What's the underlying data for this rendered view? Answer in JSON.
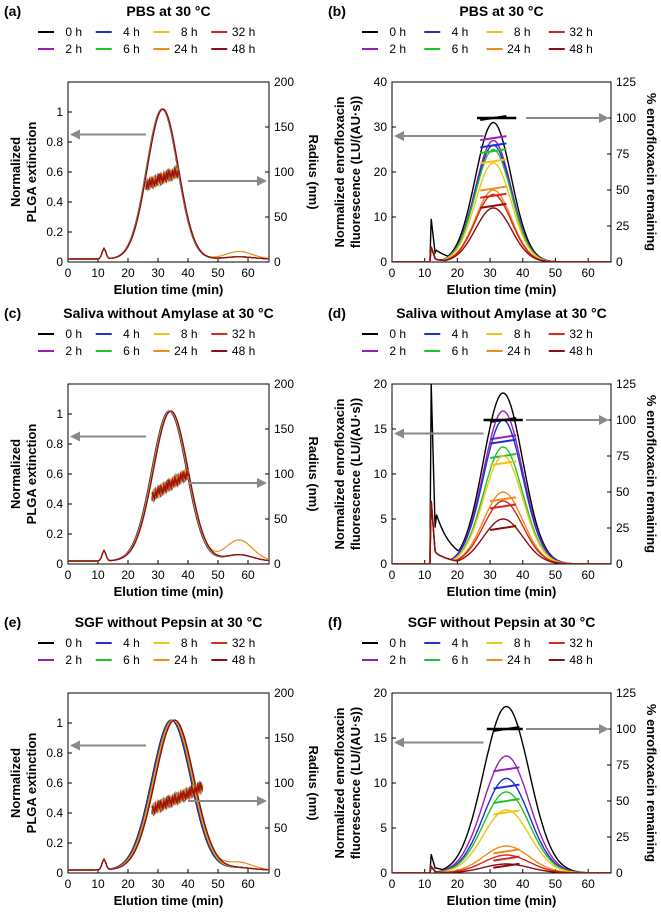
{
  "legend_entries": [
    {
      "label": "0 h",
      "color": "#000000"
    },
    {
      "label": "2 h",
      "color": "#9b1fb5"
    },
    {
      "label": "4 h",
      "color": "#1f2fd6"
    },
    {
      "label": "6 h",
      "color": "#22c22a"
    },
    {
      "label": "8 h",
      "color": "#f0c419"
    },
    {
      "label": "24 h",
      "color": "#f08a1a"
    },
    {
      "label": "32 h",
      "color": "#d42a1c"
    },
    {
      "label": "48 h",
      "color": "#8b0d0d"
    }
  ],
  "chart_data": [
    {
      "panel": "(a)",
      "title": "PBS at 30 °C",
      "type": "line",
      "xlabel": "Elution time (min)",
      "ylabel": [
        "Normalized",
        "PLGA extinction"
      ],
      "y2label": "Radius (nm)",
      "xlim": [
        0,
        67
      ],
      "xticks": [
        0,
        10,
        20,
        30,
        40,
        50,
        60
      ],
      "ylim": [
        0,
        1.2
      ],
      "yticks": [
        0,
        0.2,
        0.4,
        0.6,
        0.8,
        1
      ],
      "y2lim": [
        0,
        200
      ],
      "y2ticks": [
        0,
        50,
        100,
        150,
        200
      ],
      "peak": {
        "center": 31.5,
        "width": 5.2,
        "spread": 0.15,
        "tail": 0.05,
        "bump": 12
      },
      "radius": {
        "start": 26,
        "end": 37,
        "from": 85,
        "to": 100
      },
      "arrows": {
        "left_y": 0.85,
        "right_y": 90
      }
    },
    {
      "panel": "(b)",
      "title": "PBS at 30 °C",
      "type": "line",
      "xlabel": "Elution time (min)",
      "ylabel": [
        "Normalized enrofloxacin",
        "fluorescence (LU/(AU·s))"
      ],
      "y2label": "% enrofloxacin remaining",
      "xlim": [
        0,
        67
      ],
      "xticks": [
        0,
        10,
        20,
        30,
        40,
        50,
        60
      ],
      "ylim": [
        0,
        40
      ],
      "yticks": [
        0,
        10,
        20,
        30,
        40
      ],
      "y2lim": [
        0,
        125
      ],
      "y2ticks": [
        0,
        25,
        50,
        75,
        100,
        125
      ],
      "peak": {
        "center": 31,
        "width": 5.5,
        "heights": [
          31,
          27,
          26,
          25,
          22,
          16,
          15,
          12
        ],
        "spike": 9.5
      },
      "remaining": [
        100,
        86,
        81,
        77,
        70,
        51,
        46,
        39
      ],
      "bar": {
        "from": 26,
        "to": 38,
        "level": 100
      },
      "arrows": {
        "left_y": 28,
        "right_y": 100
      }
    },
    {
      "panel": "(c)",
      "title": "Saliva without Amylase at 30 °C",
      "type": "line",
      "xlabel": "Elution time (min)",
      "ylabel": [
        "Normalized",
        "PLGA extinction"
      ],
      "y2label": "Radius (nm)",
      "xlim": [
        0,
        67
      ],
      "xticks": [
        0,
        10,
        20,
        30,
        40,
        50,
        60
      ],
      "ylim": [
        0,
        1.2
      ],
      "yticks": [
        0,
        0.2,
        0.4,
        0.6,
        0.8,
        1
      ],
      "y2lim": [
        0,
        200
      ],
      "y2ticks": [
        0,
        50,
        100,
        150,
        200
      ],
      "peak": {
        "center": 34,
        "width": 5.8,
        "spread": 0.3,
        "tail": 0.14,
        "bump": 12
      },
      "radius": {
        "start": 28,
        "end": 40,
        "from": 75,
        "to": 100
      },
      "arrows": {
        "left_y": 0.85,
        "right_y": 90
      }
    },
    {
      "panel": "(d)",
      "title": "Saliva without Amylase at 30 °C",
      "type": "line",
      "xlabel": "Elution time (min)",
      "ylabel": [
        "Normalized enrofloxacin",
        "fluorescence (LU/(AU·s))"
      ],
      "y2label": "% enrofloxacin remaining",
      "xlim": [
        0,
        67
      ],
      "xticks": [
        0,
        10,
        20,
        30,
        40,
        50,
        60
      ],
      "ylim": [
        0,
        20
      ],
      "yticks": [
        0,
        5,
        10,
        15,
        20
      ],
      "y2lim": [
        0,
        125
      ],
      "y2ticks": [
        0,
        25,
        50,
        75,
        100,
        125
      ],
      "peak": {
        "center": 34,
        "width": 6,
        "heights": [
          19,
          17,
          16,
          13,
          12,
          8,
          7,
          5
        ],
        "spike": 20
      },
      "remaining": [
        100,
        88,
        85,
        75,
        70,
        45,
        40,
        25
      ],
      "bar": {
        "from": 28,
        "to": 40,
        "level": 100
      },
      "arrows": {
        "left_y": 14.5,
        "right_y": 100
      }
    },
    {
      "panel": "(e)",
      "title": "SGF without Pepsin at 30 °C",
      "type": "line",
      "xlabel": "Elution time (min)",
      "ylabel": [
        "Normalized",
        "PLGA extinction"
      ],
      "y2label": "Radius (nm)",
      "xlim": [
        0,
        67
      ],
      "xticks": [
        0,
        10,
        20,
        30,
        40,
        50,
        60
      ],
      "ylim": [
        0,
        1.2
      ],
      "yticks": [
        0,
        0.2,
        0.4,
        0.6,
        0.8,
        1
      ],
      "y2lim": [
        0,
        200
      ],
      "y2ticks": [
        0,
        50,
        100,
        150,
        200
      ],
      "peak": {
        "center": 35,
        "width": 6.5,
        "spread": 0.6,
        "tail": 0.05,
        "bump": 12
      },
      "radius": {
        "start": 28,
        "end": 45,
        "from": 70,
        "to": 95
      },
      "arrows": {
        "left_y": 0.85,
        "right_y": 80
      }
    },
    {
      "panel": "(f)",
      "title": "SGF without Pepsin at 30 °C",
      "type": "line",
      "xlabel": "Elution time (min)",
      "ylabel": [
        "Normalized enrofloxacin",
        "fluorescence (LU/(AU·s))"
      ],
      "y2label": "% enrofloxacin remaining",
      "xlim": [
        0,
        67
      ],
      "xticks": [
        0,
        10,
        20,
        30,
        40,
        50,
        60
      ],
      "ylim": [
        0,
        20
      ],
      "yticks": [
        0,
        5,
        10,
        15,
        20
      ],
      "y2lim": [
        0,
        125
      ],
      "y2ticks": [
        0,
        25,
        50,
        75,
        100,
        125
      ],
      "peak": {
        "center": 35,
        "width": 7,
        "heights": [
          18.5,
          13,
          10.5,
          9,
          7,
          3,
          2,
          1
        ],
        "spike": 2
      },
      "remaining": [
        100,
        72,
        60,
        50,
        42,
        15,
        10,
        5
      ],
      "bar": {
        "from": 29,
        "to": 40,
        "level": 100
      },
      "arrows": {
        "left_y": 14.5,
        "right_y": 100
      }
    }
  ]
}
